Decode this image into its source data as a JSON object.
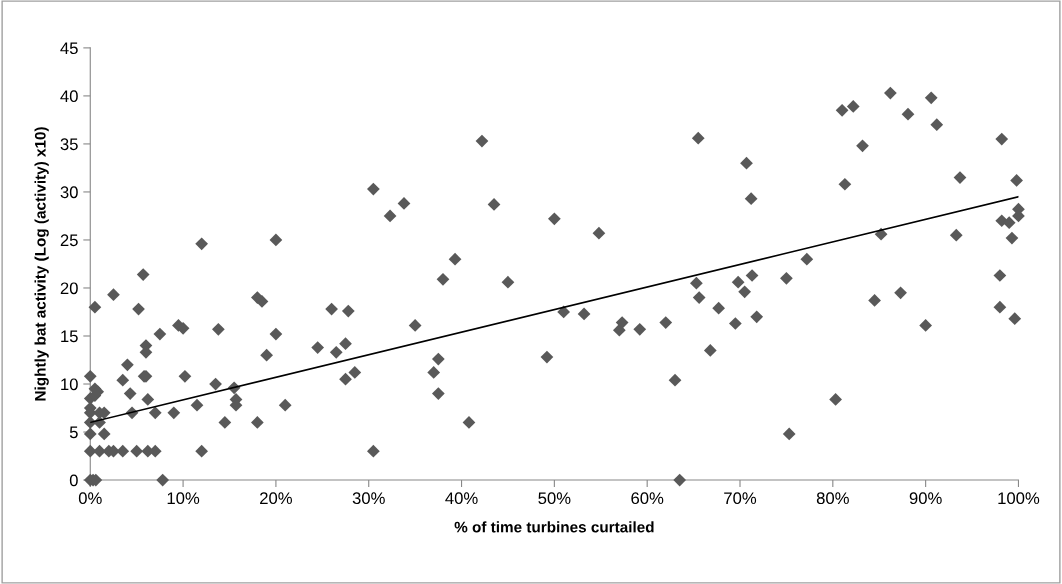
{
  "chart_data": {
    "type": "scatter",
    "xlabel": "% of time turbines curtailed",
    "ylabel": "Nightly bat activity (Log (activity) x10)",
    "xlim": [
      0,
      100
    ],
    "ylim": [
      0,
      45
    ],
    "xticks": [
      {
        "value": 0,
        "label": "0%"
      },
      {
        "value": 10,
        "label": "10%"
      },
      {
        "value": 20,
        "label": "20%"
      },
      {
        "value": 30,
        "label": "30%"
      },
      {
        "value": 40,
        "label": "40%"
      },
      {
        "value": 50,
        "label": "50%"
      },
      {
        "value": 60,
        "label": "60%"
      },
      {
        "value": 70,
        "label": "70%"
      },
      {
        "value": 80,
        "label": "80%"
      },
      {
        "value": 90,
        "label": "90%"
      },
      {
        "value": 100,
        "label": "100%"
      }
    ],
    "yticks": [
      0,
      5,
      10,
      15,
      20,
      25,
      30,
      35,
      40,
      45
    ],
    "grid": false,
    "series": [
      {
        "color": "#595959",
        "marker": "diamond",
        "x": [
          0,
          0.3,
          0.6,
          0,
          0,
          0,
          0,
          0,
          0,
          0,
          0.5,
          0.5,
          0.8,
          1,
          1,
          0.5,
          1,
          1.5,
          1.5,
          2,
          2.5,
          2.5,
          3.5,
          3.5,
          4,
          4.3,
          4.5,
          5,
          5.2,
          5.7,
          6,
          6,
          6,
          5.8,
          6.2,
          6.2,
          7,
          7,
          7.5,
          7.8,
          9,
          9.5,
          10,
          10.2,
          11.5,
          12,
          12,
          13.5,
          13.8,
          14.5,
          15.5,
          15.7,
          15.7,
          18,
          18,
          18.5,
          19,
          20,
          20,
          21,
          24.5,
          26,
          26.5,
          27.5,
          27.5,
          27.8,
          28.5,
          30.5,
          30.5,
          32.3,
          33.8,
          35,
          37,
          37.5,
          37.5,
          38,
          39.3,
          40.8,
          42.2,
          43.5,
          45,
          49.2,
          50,
          51,
          53.2,
          54.8,
          57,
          57.3,
          59.2,
          62,
          63,
          63.5,
          65.5,
          65.3,
          65.6,
          66.8,
          67.7,
          69.5,
          69.8,
          70.5,
          70.7,
          71.3,
          71.2,
          71.8,
          75,
          75.3,
          77.2,
          80.3,
          81,
          81.3,
          82.2,
          83.2,
          84.5,
          85.2,
          86.2,
          87.3,
          88.1,
          90,
          90.6,
          91.2,
          93.3,
          93.7,
          98,
          98.2,
          98,
          98.2,
          99,
          99.3,
          99.6,
          99.8,
          100,
          100
        ],
        "values": [
          0,
          0,
          0,
          10.8,
          8.5,
          7.5,
          7,
          6,
          4.8,
          3,
          9.5,
          8.8,
          9.2,
          7,
          6,
          18,
          3,
          4.8,
          7,
          3,
          19.3,
          3,
          10.4,
          3,
          12,
          9,
          7,
          3,
          17.8,
          21.4,
          14,
          13.3,
          10.8,
          10.8,
          8.4,
          3,
          7,
          3,
          15.2,
          0,
          7,
          16.1,
          15.8,
          10.8,
          7.8,
          3,
          24.6,
          10,
          15.7,
          6,
          9.6,
          8.4,
          7.8,
          19,
          6,
          18.6,
          13,
          25,
          15.2,
          7.8,
          13.8,
          17.8,
          13.3,
          10.5,
          14.2,
          17.6,
          11.2,
          30.3,
          3,
          27.5,
          28.8,
          16.1,
          11.2,
          12.6,
          9,
          20.9,
          23,
          6,
          35.3,
          28.7,
          20.6,
          12.8,
          27.2,
          17.5,
          17.3,
          25.7,
          15.6,
          16.4,
          15.7,
          16.4,
          10.4,
          0,
          35.6,
          20.5,
          19,
          13.5,
          17.9,
          16.3,
          20.6,
          19.6,
          33,
          21.3,
          29.3,
          17,
          21,
          4.8,
          23,
          8.4,
          38.5,
          30.8,
          38.9,
          34.8,
          18.7,
          25.6,
          40.3,
          19.5,
          38.1,
          16.1,
          39.8,
          37,
          25.5,
          31.5,
          21.3,
          35.5,
          18,
          27,
          26.8,
          25.2,
          16.8,
          31.2,
          28.2,
          27.5
        ]
      },
      {
        "type": "line",
        "marker": "none",
        "color": "#000000",
        "x": [
          0,
          100
        ],
        "values": [
          6,
          29.5
        ]
      }
    ]
  }
}
